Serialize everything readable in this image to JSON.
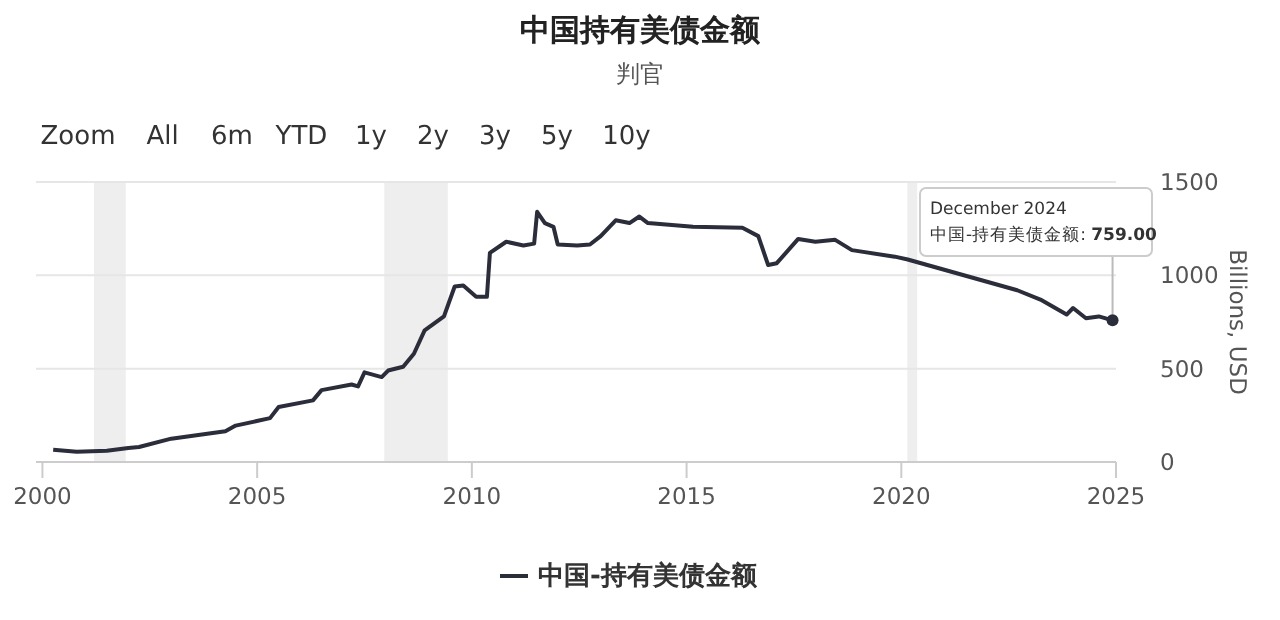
{
  "chart_data": {
    "type": "line",
    "title": "中国持有美债金额",
    "subtitle": "判官",
    "ylabel": "Billions, USD",
    "x": [
      2000.25,
      2000.8,
      2001.5,
      2002.0,
      2002.25,
      2003.0,
      2004.26,
      2004.5,
      2005.3,
      2005.5,
      2006.3,
      2006.5,
      2007.2,
      2007.35,
      2007.5,
      2007.9,
      2008.05,
      2008.4,
      2008.65,
      2008.9,
      2009.35,
      2009.6,
      2009.8,
      2010.1,
      2010.35,
      2010.42,
      2010.8,
      2011.2,
      2011.45,
      2011.52,
      2011.7,
      2011.9,
      2012.0,
      2012.45,
      2012.75,
      2013.0,
      2013.35,
      2013.67,
      2013.9,
      2014.1,
      2015.15,
      2016.3,
      2016.67,
      2016.9,
      2017.1,
      2017.6,
      2018.0,
      2018.46,
      2018.85,
      2019.85,
      2020.15,
      2022.7,
      2023.24,
      2023.85,
      2024.0,
      2024.3,
      2024.6,
      2024.92
    ],
    "series": [
      {
        "name": "中国-持有美债金额",
        "color": "#2b2e3a",
        "values": [
          65,
          55,
          60,
          75,
          80,
          125,
          165,
          195,
          235,
          295,
          330,
          385,
          415,
          405,
          480,
          455,
          490,
          510,
          580,
          705,
          780,
          940,
          945,
          885,
          885,
          1120,
          1180,
          1160,
          1170,
          1340,
          1280,
          1260,
          1165,
          1160,
          1165,
          1210,
          1295,
          1280,
          1315,
          1280,
          1260,
          1255,
          1210,
          1055,
          1065,
          1195,
          1180,
          1190,
          1135,
          1100,
          1085,
          920,
          870,
          790,
          825,
          770,
          780,
          759
        ]
      }
    ],
    "xlim": [
      1999.85,
      2025.0
    ],
    "ylim": [
      0,
      1500
    ],
    "xticks": [
      2000,
      2005,
      2010,
      2015,
      2020,
      2025
    ],
    "yticks": [
      0,
      500,
      1000,
      1500
    ],
    "grid": "y",
    "legend": "bottom",
    "marker": "none",
    "bands": [
      {
        "axis": "x",
        "from": 2001.2,
        "to": 2001.94,
        "color": "#eeeeee"
      },
      {
        "axis": "x",
        "from": 2007.96,
        "to": 2009.44,
        "color": "#eeeeee"
      },
      {
        "axis": "x",
        "from": 2020.14,
        "to": 2020.37,
        "color": "#eeeeee"
      }
    ],
    "annotations": [
      "Zoom",
      "All",
      "6m",
      "YTD",
      "1y",
      "2y",
      "3y",
      "5y",
      "10y",
      {
        "text": "December 2024\n中国-持有美债金额: **759.00**",
        "x": 2024.92,
        "y": 759
      }
    ]
  }
}
